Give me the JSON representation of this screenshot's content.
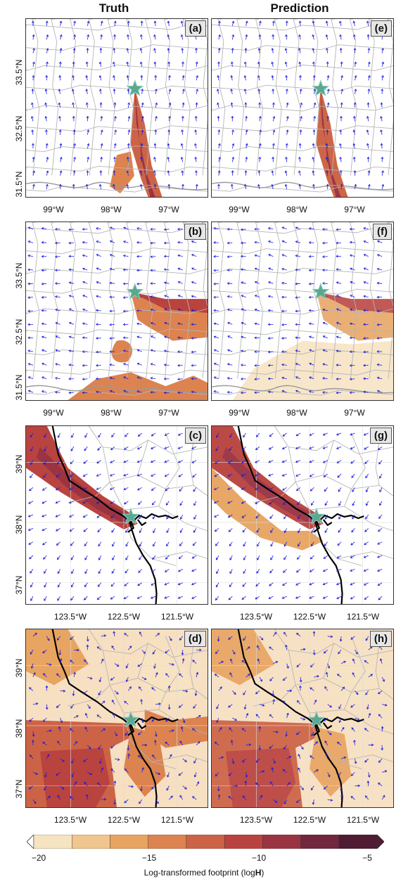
{
  "titles": {
    "left": "Truth",
    "right": "Prediction"
  },
  "panels": [
    {
      "tag": "(a)",
      "region": "texas",
      "pattern": "narrow",
      "intensity": 1.0
    },
    {
      "tag": "(e)",
      "region": "texas",
      "pattern": "narrow",
      "intensity": 0.95
    },
    {
      "tag": "(b)",
      "region": "texas",
      "pattern": "eastward",
      "intensity": 1.0
    },
    {
      "tag": "(f)",
      "region": "texas",
      "pattern": "eastward",
      "intensity": 0.7
    },
    {
      "tag": "(c)",
      "region": "california",
      "pattern": "coastal",
      "intensity": 1.0
    },
    {
      "tag": "(g)",
      "region": "california",
      "pattern": "coastal",
      "intensity": 0.9
    },
    {
      "tag": "(d)",
      "region": "california",
      "pattern": "broad",
      "intensity": 1.0
    },
    {
      "tag": "(h)",
      "region": "california",
      "pattern": "broad",
      "intensity": 0.85
    }
  ],
  "axes": {
    "texas": {
      "x_ticks": [
        "99°W",
        "98°W",
        "97°W"
      ],
      "y_ticks": [
        "33.5°N",
        "32.5°N",
        "31.5°N"
      ]
    },
    "california": {
      "x_ticks": [
        "123.5°W",
        "122.5°W",
        "121.5°W"
      ],
      "y_ticks": [
        "39°N",
        "38°N",
        "37°N"
      ]
    }
  },
  "colorbar": {
    "ticks": [
      "−20",
      "−15",
      "−10",
      "−5"
    ],
    "title_prefix": "Log-transformed footprint (log",
    "title_bold": "H",
    "title_suffix": ")",
    "colors": [
      "#f6e3c2",
      "#f0c58e",
      "#e8a461",
      "#dc8350",
      "#cd6346",
      "#b9433f",
      "#9a3443",
      "#72273f",
      "#4f1c33"
    ]
  },
  "colors": {
    "wind_arrow": "#1a1adb",
    "star": "#5aa88f",
    "star_edge": "#8fd0c0",
    "border": "#b5b5b5",
    "coast": "#000000"
  }
}
